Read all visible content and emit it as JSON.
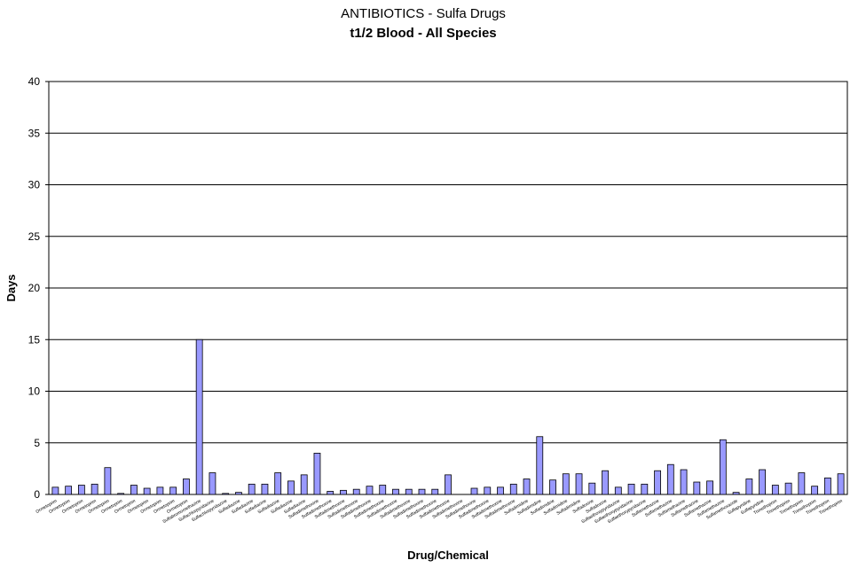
{
  "chart_data": {
    "type": "bar",
    "title": "ANTIBIOTICS - Sulfa Drugs",
    "subtitle": "t1/2 Blood - All Species",
    "x_label": "Drug/Chemical",
    "y_label": "Days",
    "categories": [
      "Ormetoprim",
      "Ormetoprim",
      "Ormetoprim",
      "Ormetoprim",
      "Ormetoprim",
      "Ormetoprim",
      "Ormetoprim",
      "Ormetoprim",
      "Ormetoprim",
      "Ormetoprim",
      "Ormetoprim",
      "Sulfabromomethazine",
      "Sulfachlorpyridazine",
      "Sulfachlorpyridazine",
      "Sulfadiazine",
      "Sulfadiazine",
      "Sulfadiazine",
      "Sulfadiazine",
      "Sulfadiazine",
      "Sulfadiazine",
      "Sulfadimethoxine",
      "Sulfadimethoxine",
      "Sulfadimethoxine",
      "Sulfadimethoxine",
      "Sulfadimethoxine",
      "Sulfadimethoxine",
      "Sulfadimethoxine",
      "Sulfadimethoxine",
      "Sulfadimethoxine",
      "Sulfadimethoxine",
      "Sulfadimethoxine",
      "Sulfadimethoxine",
      "Sulfadimethoxine",
      "Sulfadimethoxine",
      "Sulfadimethoxine",
      "Sulfadimethoxine",
      "Sulfadimidine",
      "Sulfadimidine",
      "Sulfadimidine",
      "Sulfadimidine",
      "Sulfadimidine",
      "Sulfadoxine",
      "Sulfadoxine",
      "Sulfaethoxypyridazine",
      "Sulfaethoxypyridazine",
      "Sulfaethoxypyridazine",
      "Sulfamethazine",
      "Sulfamethazine",
      "Sulfamethazine",
      "Sulfamethazine",
      "Sulfamethazine",
      "Sulfamethazine",
      "Sulfamethoxazole",
      "Sulfapyridine",
      "Sulfapyridine",
      "Trimethoprim",
      "Trimethoprim",
      "Trimethoprim",
      "Trimethoprim",
      "Trimethoprim",
      "Trimethoprim"
    ],
    "values": [
      0.7,
      0.8,
      0.9,
      1.0,
      2.6,
      0.1,
      0.9,
      0.6,
      0.7,
      0.7,
      1.5,
      15,
      2.1,
      0.1,
      0.2,
      1.0,
      1.0,
      2.1,
      1.3,
      1.9,
      4.0,
      0.3,
      0.4,
      0.5,
      0.8,
      0.9,
      0.5,
      0.5,
      0.5,
      0.5,
      1.9,
      null,
      0.6,
      0.7,
      0.7,
      1.0,
      1.5,
      5.6,
      1.4,
      2.0,
      2.0,
      1.1,
      2.3,
      0.7,
      1.0,
      1.0,
      2.3,
      2.9,
      2.4,
      1.2,
      1.3,
      5.3,
      0.2,
      1.5,
      2.4,
      0.9,
      1.1,
      2.1,
      0.8,
      1.6,
      2.0
    ],
    "color": "#9999ff",
    "ylim": [
      0,
      40
    ],
    "yticks": [
      0,
      5,
      10,
      15,
      20,
      25,
      30,
      35,
      40
    ],
    "grid": true
  }
}
